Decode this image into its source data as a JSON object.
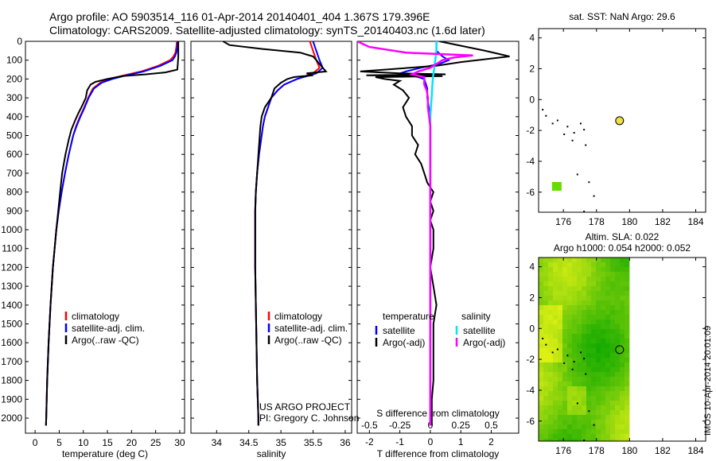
{
  "header": {
    "line1": "Argo profile: AO 5903514_116 01-Apr-2014 20140401_404 1.367S 179.396E",
    "line2": "Climatology: CARS2009. Satellite-adjusted climatology: synTS_20140403.nc (1.6d later)"
  },
  "colors": {
    "climatology": "#ff0000",
    "satellite": "#0000ff",
    "argo": "#000000",
    "sal_satellite": "#00e5ff",
    "sal_argo": "#ff00ff",
    "ocean": "#33cc00",
    "argo_marker": "#f0e040"
  },
  "depth_axis": {
    "ylim": [
      0,
      2080
    ],
    "ticks": [
      0,
      100,
      200,
      300,
      400,
      500,
      600,
      700,
      800,
      900,
      1000,
      1100,
      1200,
      1300,
      1400,
      1500,
      1600,
      1700,
      1800,
      1900,
      2000
    ],
    "tick_labels": [
      "0",
      "100",
      "200",
      "300",
      "400",
      "500",
      "600",
      "700",
      "800",
      "900",
      "1000",
      "1100",
      "1200",
      "1300",
      "1400",
      "1500",
      "1600",
      "1700",
      "1800",
      "1900",
      "2000"
    ]
  },
  "chart_data": [
    {
      "id": "temperature",
      "type": "line",
      "xlabel": "temperature (deg C)",
      "xlim": [
        -2,
        31
      ],
      "xticks": [
        0,
        5,
        10,
        15,
        20,
        25,
        30
      ],
      "xtick_labels": [
        "0",
        "5",
        "10",
        "15",
        "20",
        "25",
        "30"
      ],
      "legend": [
        "climatology",
        "satellite-adj. clim.",
        "Argo(..raw -QC)"
      ],
      "series": [
        {
          "name": "climatology",
          "color": "#ff0000",
          "depth": [
            0,
            30,
            60,
            80,
            100,
            130,
            160,
            180,
            200,
            220,
            250,
            300,
            350,
            400,
            450,
            500,
            600,
            700,
            800,
            900,
            1000,
            1200,
            1400,
            1600,
            1800,
            2000,
            2040
          ],
          "values": [
            29.4,
            29.3,
            29.1,
            28.7,
            28.0,
            25.5,
            22.0,
            18.5,
            15.5,
            13.5,
            12.0,
            11.0,
            10.2,
            9.3,
            8.5,
            7.9,
            7.0,
            6.2,
            5.5,
            4.9,
            4.4,
            3.7,
            3.2,
            2.8,
            2.5,
            2.3,
            2.25
          ]
        },
        {
          "name": "satellite-adj. clim.",
          "color": "#0000ff",
          "depth": [
            0,
            30,
            60,
            80,
            100,
            130,
            160,
            180,
            200,
            220,
            250,
            300,
            350,
            400,
            450,
            500,
            600,
            700,
            800,
            900,
            1000,
            1200,
            1400,
            1600,
            1800,
            2000,
            2040
          ],
          "values": [
            29.6,
            29.5,
            29.3,
            29.0,
            28.5,
            26.0,
            22.5,
            19.0,
            16.0,
            13.8,
            12.2,
            11.1,
            10.3,
            9.4,
            8.6,
            7.9,
            7.0,
            6.2,
            5.5,
            4.9,
            4.4,
            3.7,
            3.2,
            2.8,
            2.5,
            2.3,
            2.25
          ]
        },
        {
          "name": "Argo(..raw -QC)",
          "color": "#000000",
          "depth": [
            0,
            40,
            80,
            120,
            150,
            165,
            175,
            185,
            200,
            215,
            230,
            260,
            300,
            340,
            380,
            420,
            470,
            520,
            600,
            700,
            800,
            900,
            1000,
            1200,
            1400,
            1600,
            1800,
            2000,
            2040
          ],
          "values": [
            29.7,
            29.7,
            29.7,
            29.6,
            29.5,
            27.0,
            23.0,
            18.0,
            15.0,
            12.5,
            11.5,
            10.8,
            10.5,
            9.8,
            9.0,
            8.3,
            7.5,
            7.0,
            6.3,
            5.6,
            5.2,
            4.8,
            4.4,
            3.7,
            3.2,
            2.8,
            2.5,
            2.3,
            2.25
          ]
        }
      ]
    },
    {
      "id": "salinity",
      "type": "line",
      "xlabel": "salinity",
      "xlim": [
        33.6,
        36.1
      ],
      "xticks": [
        34,
        34.5,
        35,
        35.5,
        36
      ],
      "xtick_labels": [
        "34",
        "34.5",
        "35",
        "35.5",
        "36"
      ],
      "legend": [
        "climatology",
        "satellite-adj. clim.",
        "Argo(..raw -QC)"
      ],
      "series": [
        {
          "name": "climatology",
          "color": "#ff0000",
          "depth": [
            0,
            50,
            100,
            140,
            170,
            200,
            230,
            260,
            300,
            350,
            400,
            450,
            500,
            600,
            700,
            800,
            900,
            1000,
            1200,
            1400,
            1600,
            1800,
            2000,
            2040
          ],
          "values": [
            35.45,
            35.5,
            35.55,
            35.6,
            35.5,
            35.25,
            35.05,
            34.95,
            34.85,
            34.8,
            34.75,
            34.72,
            34.7,
            34.66,
            34.63,
            34.61,
            34.6,
            34.6,
            34.6,
            34.61,
            34.62,
            34.63,
            34.65,
            34.65
          ]
        },
        {
          "name": "satellite-adj. clim.",
          "color": "#0000ff",
          "depth": [
            0,
            50,
            100,
            140,
            170,
            200,
            230,
            260,
            300,
            350,
            400,
            450,
            500,
            600,
            700,
            800,
            900,
            1000,
            1200,
            1400,
            1600,
            1800,
            2000,
            2040
          ],
          "values": [
            35.5,
            35.55,
            35.6,
            35.65,
            35.55,
            35.25,
            35.05,
            34.95,
            34.85,
            34.8,
            34.75,
            34.72,
            34.7,
            34.66,
            34.63,
            34.61,
            34.6,
            34.6,
            34.6,
            34.61,
            34.62,
            34.63,
            34.65,
            34.65
          ]
        },
        {
          "name": "Argo(..raw -QC)",
          "color": "#000000",
          "depth": [
            0,
            20,
            40,
            60,
            80,
            100,
            120,
            140,
            160,
            170,
            180,
            190,
            200,
            220,
            250,
            300,
            350,
            400,
            450,
            500,
            600,
            700,
            800,
            900,
            1000,
            1200,
            1400,
            1600,
            1800,
            2000,
            2040
          ],
          "values": [
            34.1,
            34.2,
            34.7,
            35.3,
            35.5,
            35.55,
            35.6,
            35.65,
            35.7,
            35.4,
            35.5,
            35.2,
            35.1,
            35.0,
            34.9,
            34.85,
            34.75,
            34.7,
            34.68,
            34.67,
            34.65,
            34.63,
            34.61,
            34.6,
            34.6,
            34.6,
            34.61,
            34.62,
            34.63,
            34.65,
            34.65
          ]
        }
      ]
    },
    {
      "id": "difference",
      "type": "line",
      "xlabel": "T difference from climatology",
      "xlabel2": "S difference from climatology",
      "xlim": [
        -2.4,
        2.9
      ],
      "xticks": [
        -2,
        -1,
        0,
        1,
        2
      ],
      "xtick_labels": [
        "-2",
        "-1",
        "0",
        "1",
        "2"
      ],
      "s_xlim": [
        -0.6,
        0.725
      ],
      "s_xticks": [
        -0.5,
        -0.25,
        0,
        0.25,
        0.5
      ],
      "s_xtick_labels": [
        "-0.5",
        "-0.25",
        "0",
        "0.25",
        "0.5"
      ],
      "legend_temperature_title": "temperature",
      "legend_salinity_title": "salinity",
      "legend_temperature": [
        "satellite",
        "Argo(-adj)"
      ],
      "legend_salinity": [
        "satellite",
        "Argo(-adj)"
      ],
      "series": [
        {
          "name": "T satellite",
          "color": "#0000ff",
          "axis": "T",
          "depth": [
            0,
            50,
            80,
            100,
            120,
            140,
            160,
            170,
            180,
            190,
            200,
            250,
            300,
            400,
            600,
            800,
            1000,
            1500,
            2000,
            2040
          ],
          "values": [
            0.2,
            0.2,
            0.4,
            0.6,
            0.3,
            -0.3,
            -0.8,
            -1.0,
            -0.6,
            -0.4,
            -0.2,
            -0.1,
            -0.1,
            0.0,
            0.0,
            0.0,
            0.0,
            0.0,
            0.0,
            0.0
          ]
        },
        {
          "name": "T Argo(-adj)",
          "color": "#000000",
          "axis": "T",
          "depth": [
            0,
            10,
            30,
            50,
            80,
            110,
            130,
            150,
            160,
            170,
            175,
            180,
            185,
            190,
            200,
            210,
            230,
            260,
            300,
            350,
            400,
            450,
            500,
            550,
            600,
            650,
            700,
            750,
            800,
            850,
            900,
            950,
            1000,
            1100,
            1200,
            1300,
            1400,
            1500,
            1600,
            1700,
            1800,
            1900,
            2000,
            2040
          ],
          "values": [
            0.3,
            0.6,
            1.2,
            1.8,
            2.6,
            1.0,
            0.2,
            -1.5,
            -2.3,
            -1.0,
            0.5,
            -2.1,
            0.4,
            -1.8,
            -1.5,
            -1.0,
            -1.2,
            -0.9,
            -0.7,
            -0.9,
            -0.8,
            -0.6,
            -0.6,
            -0.4,
            -0.5,
            -0.3,
            -0.2,
            -0.1,
            0.1,
            0.0,
            0.1,
            0.0,
            0.1,
            0.1,
            0.0,
            0.1,
            0.2,
            0.1,
            0.1,
            0.1,
            0.1,
            0.05,
            0.05,
            0.05
          ]
        },
        {
          "name": "S satellite",
          "color": "#00e5ff",
          "axis": "S",
          "depth": [
            0,
            50,
            100,
            150,
            200,
            300,
            400,
            600,
            800,
            1000,
            1500,
            2000,
            2040
          ],
          "values": [
            0.05,
            0.05,
            0.04,
            0.03,
            0.02,
            0.01,
            0.0,
            0.0,
            0.0,
            0.0,
            0.0,
            0.0,
            0.0
          ]
        },
        {
          "name": "S Argo(-adj)",
          "color": "#ff00ff",
          "axis": "S",
          "depth": [
            0,
            30,
            60,
            75,
            85,
            100,
            120,
            140,
            160,
            175,
            190,
            200,
            230,
            260,
            300,
            350,
            400,
            450,
            500,
            600,
            700,
            800,
            900,
            1000,
            1200,
            1500,
            2000,
            2040
          ],
          "values": [
            -0.6,
            -0.5,
            -0.2,
            0.35,
            0.2,
            0.1,
            0.05,
            0.0,
            -0.1,
            -0.15,
            -0.05,
            -0.05,
            -0.05,
            -0.03,
            -0.02,
            -0.02,
            -0.01,
            0.0,
            0.0,
            0.0,
            0.0,
            0.0,
            0.0,
            0.0,
            0.0,
            0.0,
            0.0,
            0.0
          ]
        }
      ]
    },
    {
      "id": "sst_map",
      "type": "scatter",
      "title": "sat. SST: NaN Argo: 29.6",
      "xlim": [
        174.5,
        184.6
      ],
      "ylim": [
        -7.3,
        4.6
      ],
      "xticks": [
        176,
        178,
        180,
        182,
        184
      ],
      "xtick_labels": [
        "176",
        "178",
        "180",
        "182",
        "184"
      ],
      "yticks": [
        4,
        2,
        0,
        -2,
        -4,
        -6
      ],
      "ytick_labels": [
        "4",
        "2",
        "0",
        "-2",
        "-4",
        "-6"
      ],
      "coast_points": [
        [
          174.7,
          -0.6
        ],
        [
          174.9,
          -1.0
        ],
        [
          175.3,
          -1.5
        ],
        [
          175.6,
          -1.3
        ],
        [
          176.0,
          -2.2
        ],
        [
          176.2,
          -1.7
        ],
        [
          176.6,
          -2.1
        ],
        [
          177.0,
          -1.5
        ],
        [
          177.2,
          -1.9
        ],
        [
          176.5,
          -2.6
        ],
        [
          177.3,
          -2.9
        ],
        [
          176.8,
          -4.8
        ],
        [
          177.5,
          -5.3
        ],
        [
          177.8,
          -6.2
        ],
        [
          177.2,
          -7.2
        ]
      ],
      "green_square": [
        175.6,
        -5.65
      ],
      "argo_position": [
        179.396,
        -1.367
      ]
    },
    {
      "id": "sla_map",
      "type": "heatmap",
      "title1": "Altim. SLA: 0.022",
      "title2": "Argo h1000: 0.054 h2000: 0.052",
      "xlim": [
        174.5,
        184.6
      ],
      "ylim": [
        -7.3,
        4.6
      ],
      "xticks": [
        176,
        178,
        180,
        182,
        184
      ],
      "xtick_labels": [
        "176",
        "178",
        "180",
        "182",
        "184"
      ],
      "yticks": [
        4,
        2,
        0,
        -2,
        -4,
        -6
      ],
      "ytick_labels": [
        "4",
        "2",
        "0",
        "-2",
        "-4",
        "-6"
      ],
      "data_xlim": [
        174.5,
        180.0
      ],
      "argo_position": [
        179.396,
        -1.367
      ]
    }
  ],
  "annotations": {
    "project": "US ARGO PROJECT",
    "pi": "PI: Gregory C. Johnson",
    "watermark": "IMOS 10-Apr-2014 20:01:09"
  }
}
